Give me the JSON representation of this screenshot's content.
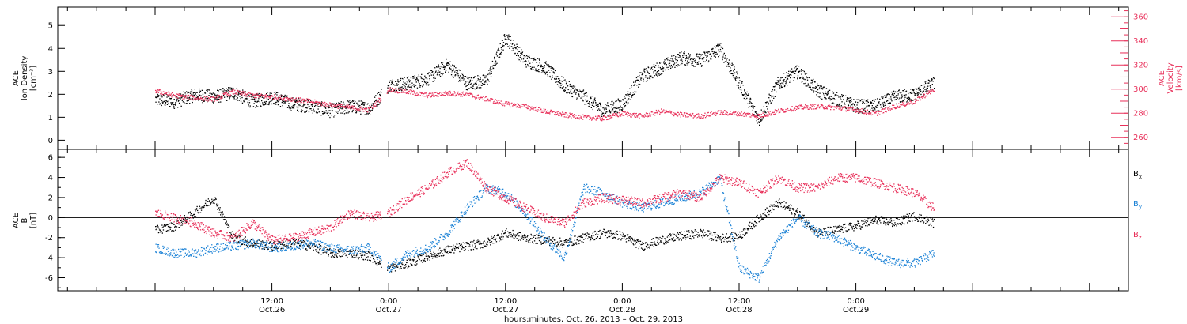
{
  "chart_data": [
    {
      "type": "scatter",
      "panel": "top",
      "ylabel_left": [
        "ACE",
        "Ion Density",
        "[cm⁻³]"
      ],
      "ylabel_right": [
        "ACE",
        "Velocity",
        "[km/s]"
      ],
      "ylim_left": [
        -0.4,
        5.8
      ],
      "ylim_right": [
        250,
        368
      ],
      "yticks_left": [
        0,
        1,
        2,
        3,
        4,
        5
      ],
      "yticks_right": [
        260,
        280,
        300,
        320,
        340,
        360
      ],
      "grid": false,
      "colors": {
        "density": "#000000",
        "velocity": "#e8305a"
      },
      "series": [
        {
          "axis": "left",
          "color": "#000000",
          "t": [
            0,
            2,
            4,
            6,
            8,
            10,
            12,
            14,
            16,
            18,
            20,
            22,
            24,
            26,
            28,
            30,
            32,
            34,
            36,
            38,
            40,
            42,
            44,
            46,
            48,
            50,
            52,
            54,
            56,
            58,
            60,
            62,
            64,
            66,
            68,
            70,
            72,
            74,
            76,
            78,
            80
          ],
          "values": [
            1.8,
            1.7,
            2.0,
            1.9,
            2.1,
            1.7,
            1.9,
            1.6,
            1.5,
            1.3,
            1.5,
            1.4,
            2.4,
            2.5,
            2.7,
            3.3,
            2.5,
            2.6,
            4.5,
            3.5,
            3.2,
            2.4,
            1.9,
            1.3,
            1.6,
            2.8,
            3.2,
            3.6,
            3.5,
            4.0,
            2.5,
            0.9,
            2.5,
            3.0,
            2.2,
            1.8,
            1.5,
            1.5,
            1.9,
            2.0,
            2.5
          ]
        },
        {
          "axis": "right",
          "color": "#e8305a",
          "t": [
            0,
            2,
            4,
            6,
            8,
            10,
            12,
            14,
            16,
            18,
            20,
            22,
            24,
            26,
            28,
            30,
            32,
            34,
            36,
            38,
            40,
            42,
            44,
            46,
            48,
            50,
            52,
            54,
            56,
            58,
            60,
            62,
            64,
            66,
            68,
            70,
            72,
            74,
            76,
            78,
            80
          ],
          "values": [
            299,
            295,
            293,
            292,
            298,
            295,
            294,
            292,
            290,
            287,
            285,
            283,
            300,
            298,
            295,
            297,
            296,
            292,
            288,
            286,
            282,
            279,
            277,
            276,
            280,
            278,
            282,
            279,
            278,
            281,
            280,
            278,
            282,
            285,
            286,
            285,
            283,
            280,
            286,
            290,
            300
          ]
        }
      ]
    },
    {
      "type": "scatter",
      "panel": "bottom",
      "ylabel": [
        "ACE",
        "B",
        "[nT]"
      ],
      "ylim": [
        -7.3,
        6.8
      ],
      "yticks": [
        -6,
        -4,
        -2,
        0,
        2,
        4,
        6
      ],
      "legend": {
        "placement": "right",
        "entries": [
          "Bx",
          "By",
          "Bz"
        ]
      },
      "colors": {
        "Bx": "#000000",
        "By": "#1b82d6",
        "Bz": "#e8305a"
      },
      "series": [
        {
          "name": "Bx",
          "color": "#000000",
          "t": [
            0,
            2,
            4,
            6,
            8,
            10,
            12,
            14,
            16,
            18,
            20,
            22,
            24,
            26,
            28,
            30,
            32,
            34,
            36,
            38,
            40,
            42,
            44,
            46,
            48,
            50,
            52,
            54,
            56,
            58,
            60,
            62,
            64,
            66,
            68,
            70,
            72,
            74,
            76,
            78,
            80
          ],
          "values": [
            -1.2,
            -0.8,
            0.5,
            2.0,
            -2.0,
            -2.5,
            -2.8,
            -2.5,
            -2.8,
            -3.5,
            -3.5,
            -3.8,
            -5.0,
            -4.5,
            -3.8,
            -3.2,
            -2.8,
            -2.5,
            -1.5,
            -2.0,
            -2.2,
            -2.5,
            -2.0,
            -1.5,
            -1.8,
            -2.8,
            -2.2,
            -1.8,
            -1.5,
            -2.0,
            -1.8,
            0.0,
            1.5,
            0.5,
            -1.5,
            -1.2,
            -0.8,
            -0.2,
            -0.5,
            0.2,
            -0.5
          ]
        },
        {
          "name": "By",
          "color": "#1b82d6",
          "t": [
            0,
            2,
            4,
            6,
            8,
            10,
            12,
            14,
            16,
            18,
            20,
            22,
            24,
            26,
            28,
            30,
            32,
            34,
            36,
            38,
            40,
            42,
            44,
            46,
            48,
            50,
            52,
            54,
            56,
            58,
            60,
            62,
            64,
            66,
            68,
            70,
            72,
            74,
            76,
            78,
            80
          ],
          "values": [
            -3.0,
            -3.5,
            -3.5,
            -3.0,
            -2.8,
            -2.5,
            -3.0,
            -2.8,
            -2.5,
            -3.0,
            -3.2,
            -3.0,
            -5.0,
            -3.5,
            -3.0,
            -1.5,
            1.0,
            3.0,
            2.5,
            0.5,
            -2.0,
            -4.0,
            3.0,
            2.5,
            1.5,
            1.0,
            1.5,
            2.0,
            2.5,
            4.0,
            -5.0,
            -6.0,
            -2.0,
            0.0,
            -1.5,
            -2.0,
            -3.0,
            -3.8,
            -4.5,
            -4.5,
            -3.5
          ]
        },
        {
          "name": "Bz",
          "color": "#e8305a",
          "t": [
            0,
            2,
            4,
            6,
            8,
            10,
            12,
            14,
            16,
            18,
            20,
            22,
            24,
            26,
            28,
            30,
            32,
            34,
            36,
            38,
            40,
            42,
            44,
            46,
            48,
            50,
            52,
            54,
            56,
            58,
            60,
            62,
            64,
            66,
            68,
            70,
            72,
            74,
            76,
            78,
            80
          ],
          "values": [
            0.5,
            0.0,
            -0.5,
            -1.5,
            -2.0,
            -0.5,
            -2.2,
            -2.0,
            -1.5,
            -1.0,
            0.5,
            0.0,
            0.5,
            2.0,
            3.0,
            4.5,
            5.5,
            3.0,
            2.0,
            1.0,
            0.0,
            -0.5,
            1.5,
            2.0,
            1.8,
            1.5,
            2.0,
            2.5,
            2.0,
            4.0,
            3.5,
            2.5,
            4.0,
            3.0,
            3.0,
            4.0,
            4.0,
            3.5,
            3.0,
            2.5,
            1.0
          ]
        }
      ]
    }
  ],
  "x_axis": {
    "range_hours": [
      -10,
      100
    ],
    "ticks": [
      {
        "t": 12,
        "time": "12:00",
        "date": "Oct.26"
      },
      {
        "t": 24,
        "time": "0:00",
        "date": "Oct.27"
      },
      {
        "t": 36,
        "time": "12:00",
        "date": "Oct.27"
      },
      {
        "t": 48,
        "time": "0:00",
        "date": "Oct.28"
      },
      {
        "t": 60,
        "time": "12:00",
        "date": "Oct.28"
      },
      {
        "t": 72,
        "time": "0:00",
        "date": "Oct.29"
      }
    ],
    "label": "hours:minutes, Oct. 26, 2013 – Oct. 29, 2013"
  },
  "legend_labels": {
    "Bx": "B",
    "By": "B",
    "Bz": "B",
    "Bx_sub": "x",
    "By_sub": "y",
    "Bz_sub": "z"
  }
}
